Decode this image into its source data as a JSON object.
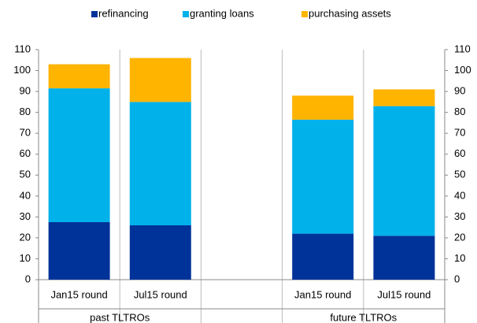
{
  "chart_data": {
    "type": "stacked-bar",
    "categories": [
      "Jan15 round",
      "Jul15  round",
      null,
      "Jan15 round",
      "Jul15  round"
    ],
    "groups": [
      {
        "label": "past TLTROs",
        "span": 2
      },
      {
        "label": "future TLTROs",
        "span": 2
      }
    ],
    "series": [
      {
        "name": "refinancing",
        "color": "#003399",
        "values": [
          27.5,
          26,
          null,
          22,
          21
        ]
      },
      {
        "name": "granting loans",
        "color": "#00b1ea",
        "values": [
          64,
          59,
          null,
          54.5,
          62
        ]
      },
      {
        "name": "purchasing assets",
        "color": "#ffb400",
        "values": [
          11.5,
          21,
          null,
          11.5,
          8
        ]
      }
    ],
    "ylim": [
      0,
      110
    ],
    "yticks": [
      0,
      10,
      20,
      30,
      40,
      50,
      60,
      70,
      80,
      90,
      100,
      110
    ],
    "y2lim": [
      0,
      110
    ],
    "y2ticks": [
      0,
      10,
      20,
      30,
      40,
      50,
      60,
      70,
      80,
      90,
      100,
      110
    ],
    "legend": "top"
  }
}
